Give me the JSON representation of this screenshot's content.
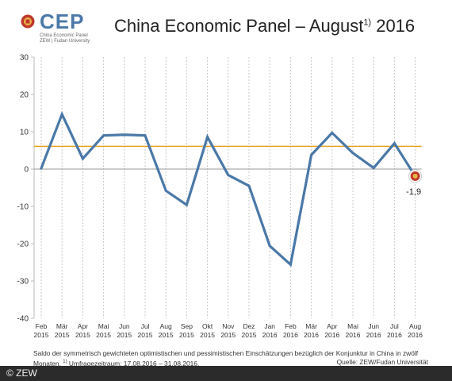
{
  "logo": {
    "text": "CEP",
    "sub1": "China Economic Panel",
    "sub2": "ZEW | Fudan University"
  },
  "header": {
    "title_main": "China Economic Panel – August",
    "title_sup": "1)",
    "title_year": " 2016"
  },
  "chart_data": {
    "type": "line",
    "categories": [
      [
        "Feb",
        "2015"
      ],
      [
        "Mär",
        "2015"
      ],
      [
        "Apr",
        "2015"
      ],
      [
        "Mai",
        "2015"
      ],
      [
        "Jun",
        "2015"
      ],
      [
        "Jul",
        "2015"
      ],
      [
        "Aug",
        "2015"
      ],
      [
        "Sep",
        "2015"
      ],
      [
        "Okt",
        "2015"
      ],
      [
        "Nov",
        "2015"
      ],
      [
        "Dez",
        "2015"
      ],
      [
        "Jan",
        "2016"
      ],
      [
        "Feb",
        "2016"
      ],
      [
        "Mär",
        "2016"
      ],
      [
        "Apr",
        "2016"
      ],
      [
        "Mai",
        "2016"
      ],
      [
        "Jun",
        "2016"
      ],
      [
        "Jul",
        "2016"
      ],
      [
        "Aug",
        "2016"
      ]
    ],
    "values": [
      0.2,
      14.7,
      2.8,
      9.0,
      9.2,
      9.0,
      -5.8,
      -9.6,
      8.6,
      -1.6,
      -4.5,
      -20.6,
      -25.6,
      3.8,
      9.7,
      4.3,
      0.3,
      6.9,
      -1.9
    ],
    "reference_line": 6.1,
    "ylim": [
      -40,
      30
    ],
    "yticks": [
      30,
      20,
      10,
      0,
      -10,
      -20,
      -30,
      -40
    ],
    "last_label": "-1,9",
    "colors": {
      "line": "#4a78a8",
      "reference": "#e8a020",
      "zero": "#999999",
      "grid": "#c8c8c8",
      "marker": "#c0392b"
    }
  },
  "note": {
    "line1": "Saldo der symmetrisch gewichteten optimistischen und pessimistischen Einschätzungen bezüglich der Konjunktur in China in zwölf",
    "line2a": "Monaten.",
    "line2sup": "1)",
    "line2b": "Umfragezeitraum: 17.08.2016 – 31.08.2016.",
    "source": "Quelle: ZEW/Fudan Universität"
  },
  "footer": {
    "copyright": "© ZEW"
  }
}
